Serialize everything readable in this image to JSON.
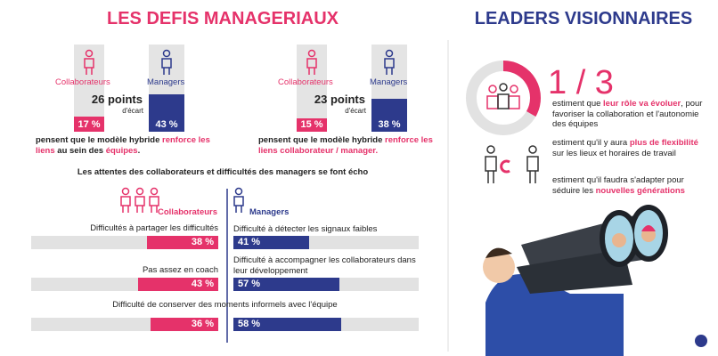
{
  "left_title": "LES DEFIS MANAGERIAUX",
  "right_title": "LEADERS VISIONNAIRES",
  "comparisons": [
    {
      "collab_label": "Collaborateurs",
      "manager_label": "Managers",
      "values": [
        17,
        43
      ],
      "value_labels": [
        "17 %",
        "43 %"
      ],
      "gap": "26 points",
      "gap_sub": "d'écart",
      "caption": [
        "pensent que le modèle hybride ",
        "renforce les liens",
        " au sein des ",
        "équipes",
        "."
      ]
    },
    {
      "collab_label": "Collaborateurs",
      "manager_label": "Managers",
      "values": [
        15,
        38
      ],
      "value_labels": [
        "15 %",
        "38 %"
      ],
      "gap": "23 points",
      "gap_sub": "d'écart",
      "caption": [
        "pensent que le modèle hybride ",
        "renforce les liens collaborateur / manager."
      ]
    }
  ],
  "subtitle": "Les attentes des collaborateurs et difficultés des managers se font écho",
  "difficulties": {
    "collab_legend": "Collaborateurs",
    "manager_legend": "Managers",
    "collab": [
      {
        "label": "Difficultés à partager les difficultés",
        "value": 38,
        "value_label": "38 %"
      },
      {
        "label": "Pas assez en coach",
        "value": 43,
        "value_label": "43 %"
      }
    ],
    "managers": [
      {
        "label": "Difficulté à détecter les signaux faibles",
        "value": 41,
        "value_label": "41 %"
      },
      {
        "label": "Difficulté à accompagner les collaborateurs dans leur développement",
        "value": 57,
        "value_label": "57 %"
      }
    ],
    "shared": {
      "label": "Difficulté de conserver des moments informels avec l'équipe",
      "values": [
        36,
        58
      ],
      "value_labels": [
        "36 %",
        "58 %"
      ]
    }
  },
  "leaders": {
    "fraction": "1 / 3",
    "items": [
      [
        "estiment que ",
        "leur rôle va évoluer",
        ", pour favoriser la collaboration et l'autonomie des équipes"
      ],
      [
        "estiment qu'il y aura ",
        "plus de flexibilité",
        " sur les lieux et horaires de travail"
      ],
      [
        "estiment qu'il faudra s'adapter pour séduire les ",
        "nouvelles générations"
      ]
    ]
  }
}
